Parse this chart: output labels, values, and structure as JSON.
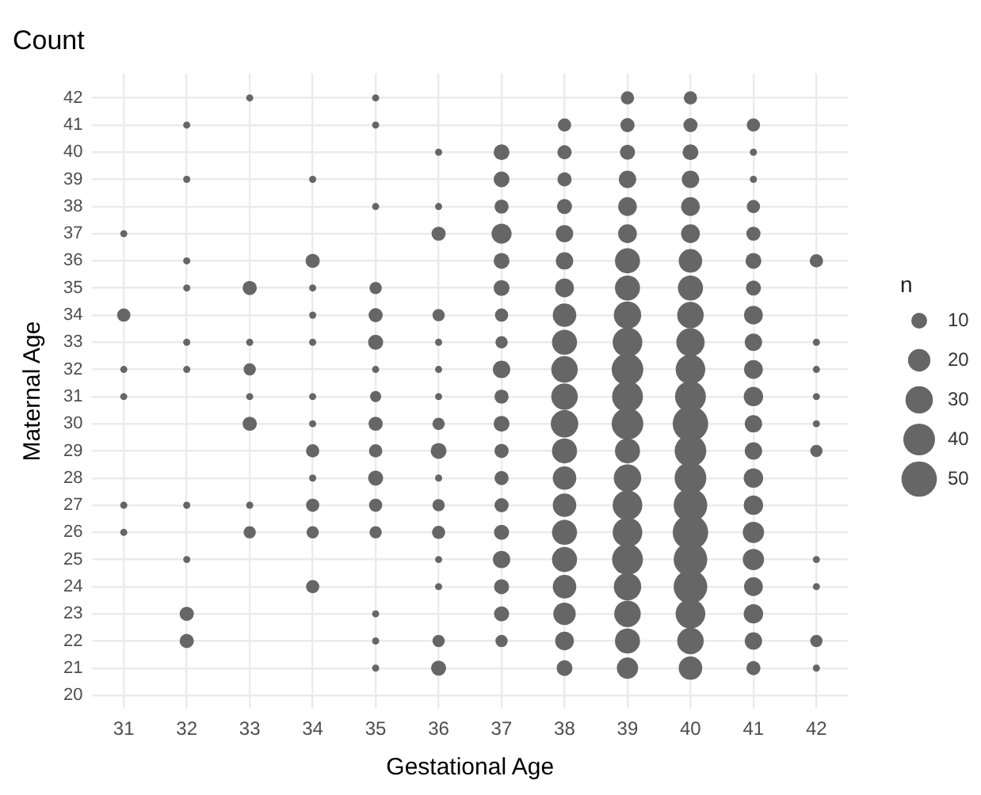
{
  "chart_data": {
    "type": "bubble",
    "title": "Count",
    "xlabel": "Gestational Age",
    "ylabel": "Maternal Age",
    "legend_title": "n",
    "grid": true,
    "marker": "circle",
    "xlim": [
      30.5,
      42.5
    ],
    "xticks": [
      31,
      32,
      33,
      34,
      35,
      36,
      37,
      38,
      39,
      40,
      41,
      42
    ],
    "ylim": [
      19.5,
      42.9
    ],
    "yticks": [
      20,
      21,
      22,
      23,
      24,
      25,
      26,
      27,
      28,
      29,
      30,
      31,
      32,
      33,
      34,
      35,
      36,
      37,
      38,
      39,
      40,
      41,
      42
    ],
    "size_legend": [
      10,
      20,
      30,
      40,
      50
    ],
    "series": [
      {
        "color": "#666666",
        "x": [
          31,
          31,
          31,
          31,
          31,
          31,
          32,
          32,
          32,
          32,
          32,
          32,
          32,
          32,
          32,
          32,
          33,
          33,
          33,
          33,
          33,
          33,
          33,
          33,
          34,
          34,
          34,
          34,
          34,
          34,
          34,
          34,
          34,
          34,
          34,
          34,
          35,
          35,
          35,
          35,
          35,
          35,
          35,
          35,
          35,
          35,
          35,
          35,
          35,
          35,
          35,
          35,
          36,
          36,
          36,
          36,
          36,
          36,
          36,
          36,
          36,
          36,
          36,
          36,
          36,
          36,
          36,
          36,
          37,
          37,
          37,
          37,
          37,
          37,
          37,
          37,
          37,
          37,
          37,
          37,
          37,
          37,
          37,
          37,
          37,
          37,
          37,
          38,
          38,
          38,
          38,
          38,
          38,
          38,
          38,
          38,
          38,
          38,
          38,
          38,
          38,
          38,
          38,
          38,
          38,
          38,
          38,
          38,
          39,
          39,
          39,
          39,
          39,
          39,
          39,
          39,
          39,
          39,
          39,
          39,
          39,
          39,
          39,
          39,
          39,
          39,
          39,
          39,
          39,
          39,
          40,
          40,
          40,
          40,
          40,
          40,
          40,
          40,
          40,
          40,
          40,
          40,
          40,
          40,
          40,
          40,
          40,
          40,
          40,
          40,
          40,
          40,
          41,
          41,
          41,
          41,
          41,
          41,
          41,
          41,
          41,
          41,
          41,
          41,
          41,
          41,
          41,
          41,
          41,
          41,
          41,
          41,
          41,
          42,
          42,
          42,
          42,
          42,
          42,
          42,
          42,
          42,
          42
        ],
        "values": [
          37,
          34,
          32,
          31,
          27,
          26,
          41,
          39,
          36,
          35,
          33,
          32,
          27,
          25,
          23,
          22,
          42,
          35,
          33,
          32,
          31,
          30,
          27,
          26,
          39,
          36,
          35,
          34,
          33,
          31,
          30,
          29,
          28,
          27,
          26,
          24,
          42,
          41,
          38,
          35,
          34,
          33,
          32,
          31,
          30,
          29,
          28,
          27,
          26,
          23,
          22,
          21,
          40,
          38,
          37,
          34,
          33,
          32,
          31,
          30,
          29,
          28,
          27,
          26,
          25,
          24,
          22,
          21,
          40,
          39,
          38,
          37,
          36,
          35,
          34,
          33,
          32,
          31,
          30,
          29,
          28,
          27,
          26,
          25,
          24,
          23,
          22,
          41,
          40,
          39,
          38,
          37,
          36,
          35,
          34,
          33,
          32,
          31,
          30,
          29,
          28,
          27,
          26,
          25,
          24,
          23,
          22,
          21,
          42,
          41,
          40,
          39,
          38,
          37,
          36,
          35,
          34,
          33,
          32,
          31,
          30,
          29,
          28,
          27,
          26,
          25,
          24,
          23,
          22,
          21,
          42,
          41,
          40,
          39,
          38,
          37,
          36,
          35,
          34,
          33,
          32,
          31,
          30,
          29,
          28,
          27,
          26,
          25,
          24,
          23,
          22,
          21,
          41,
          40,
          39,
          38,
          37,
          36,
          35,
          34,
          33,
          32,
          31,
          30,
          29,
          28,
          27,
          26,
          25,
          24,
          23,
          22,
          21,
          36,
          33,
          32,
          31,
          30,
          29,
          25,
          24,
          22,
          21
        ],
        "sizes": [
          2,
          7,
          2,
          2,
          2,
          2,
          2,
          2,
          2,
          2,
          2,
          2,
          2,
          2,
          8,
          8,
          2,
          8,
          2,
          6,
          2,
          8,
          2,
          6,
          2,
          8,
          2,
          2,
          2,
          2,
          2,
          7,
          2,
          7,
          6,
          7,
          2,
          2,
          2,
          6,
          8,
          9,
          2,
          5,
          8,
          7,
          9,
          7,
          6,
          2,
          2,
          2,
          2,
          2,
          8,
          6,
          2,
          2,
          2,
          6,
          10,
          2,
          6,
          7,
          2,
          2,
          6,
          9,
          10,
          10,
          8,
          16,
          10,
          10,
          7,
          6,
          12,
          8,
          10,
          8,
          8,
          8,
          9,
          12,
          9,
          9,
          6,
          7,
          8,
          8,
          9,
          12,
          12,
          14,
          22,
          25,
          28,
          28,
          30,
          25,
          22,
          22,
          25,
          25,
          22,
          20,
          14,
          10,
          7,
          8,
          9,
          12,
          14,
          14,
          25,
          25,
          30,
          35,
          40,
          38,
          40,
          25,
          30,
          35,
          35,
          38,
          30,
          28,
          25,
          18,
          7,
          8,
          10,
          12,
          14,
          14,
          22,
          25,
          28,
          32,
          35,
          38,
          50,
          40,
          40,
          45,
          50,
          45,
          45,
          35,
          28,
          22,
          7,
          2,
          2,
          7,
          8,
          10,
          9,
          14,
          12,
          14,
          15,
          12,
          12,
          15,
          15,
          18,
          18,
          14,
          15,
          12,
          8,
          7,
          2,
          2,
          2,
          2,
          6,
          2,
          2,
          6,
          2
        ]
      }
    ]
  }
}
